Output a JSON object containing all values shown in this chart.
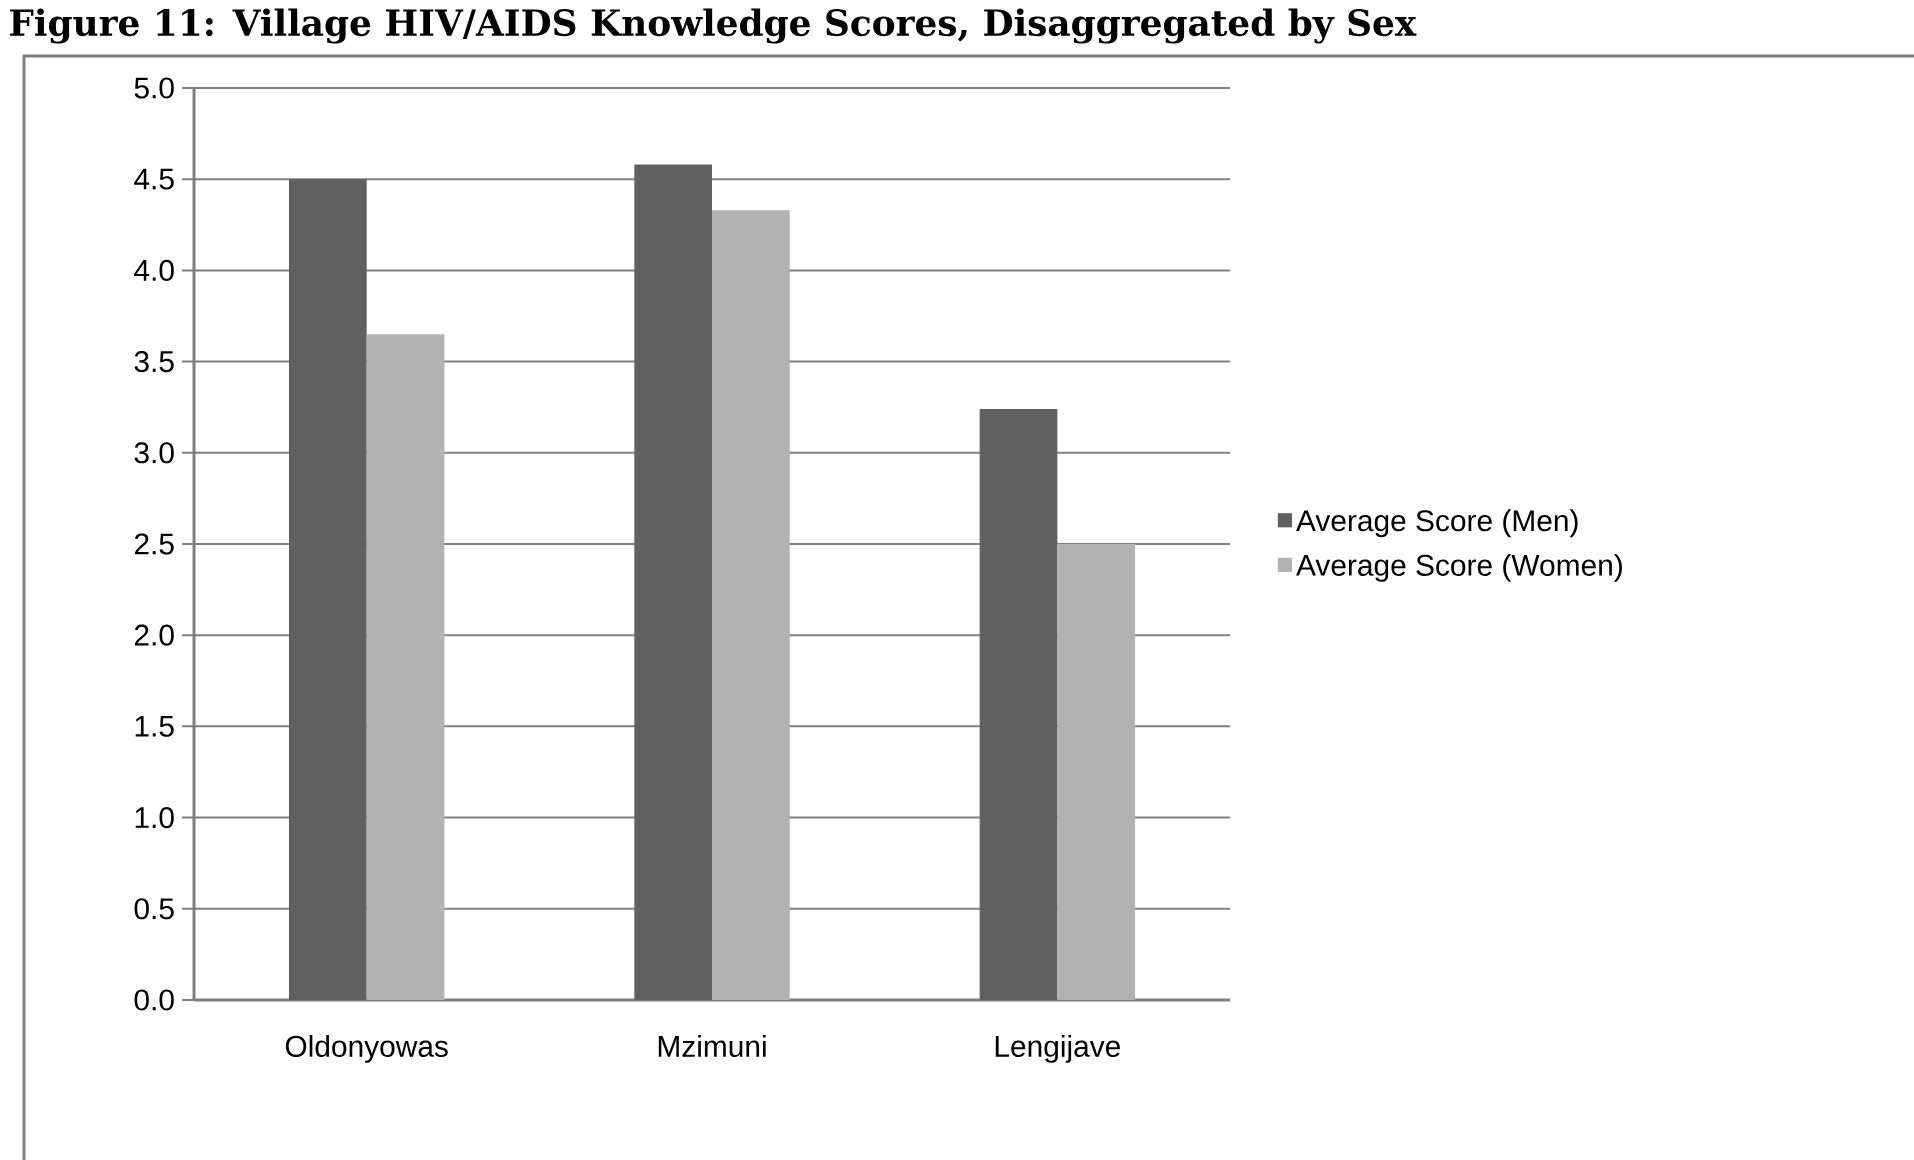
{
  "chart_data": {
    "type": "bar",
    "title": "Figure 11:   Village HIV/AIDS Knowledge Scores, Disaggregated by Sex",
    "categories": [
      "Oldonyowas",
      "Mzimuni",
      "Lengijave"
    ],
    "series": [
      {
        "name": "Average Score (Men)",
        "color": "#606060",
        "values": [
          4.5,
          4.58,
          3.24
        ]
      },
      {
        "name": "Average Score (Women)",
        "color": "#b2b2b2",
        "values": [
          3.65,
          4.33,
          2.5
        ]
      }
    ],
    "ylim": [
      0,
      5
    ],
    "yticks": [
      {
        "value": 0,
        "label": "0.0"
      },
      {
        "value": 0.5,
        "label": "0.5"
      },
      {
        "value": 1,
        "label": "1.0"
      },
      {
        "value": 1.5,
        "label": "1.5"
      },
      {
        "value": 2,
        "label": "2.0"
      },
      {
        "value": 2.5,
        "label": "2.5"
      },
      {
        "value": 3,
        "label": "3.0"
      },
      {
        "value": 3.5,
        "label": "3.5"
      },
      {
        "value": 4,
        "label": "4.0"
      },
      {
        "value": 4.5,
        "label": "4.5"
      },
      {
        "value": 5,
        "label": "5.0"
      }
    ],
    "grid": "y",
    "legend": "right"
  }
}
